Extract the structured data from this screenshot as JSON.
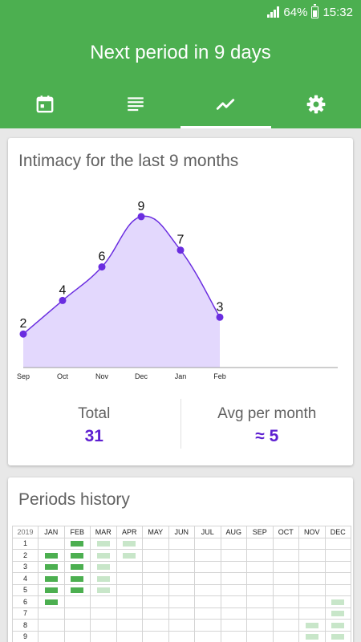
{
  "status": {
    "battery": "64%",
    "time": "15:32"
  },
  "header": {
    "title": "Next period in 9 days"
  },
  "tabs": [
    {
      "icon": "calendar-icon"
    },
    {
      "icon": "list-icon"
    },
    {
      "icon": "trend-chart-icon",
      "active": true
    },
    {
      "icon": "gear-icon"
    }
  ],
  "colors": {
    "primary": "#4caf50",
    "accent": "#5e1fd1",
    "area": "#e3d8fd",
    "line": "#6a2de0",
    "predicted": "#c8e6c9"
  },
  "intimacy": {
    "title": "Intimacy for the last 9 months",
    "total_label": "Total",
    "total_value": "31",
    "avg_label": "Avg per month",
    "avg_value": "≈ 5"
  },
  "chart_data": {
    "type": "area",
    "categories": [
      "Sep",
      "Oct",
      "Nov",
      "Dec",
      "Jan",
      "Feb"
    ],
    "values": [
      2,
      4,
      6,
      9,
      7,
      3
    ],
    "ylim": [
      0,
      10
    ],
    "grid": false,
    "legend": "none"
  },
  "history": {
    "title": "Periods history",
    "year": "2019",
    "months": [
      "JAN",
      "FEB",
      "MAR",
      "APR",
      "MAY",
      "JUN",
      "JUL",
      "AUG",
      "SEP",
      "OCT",
      "NOV",
      "DEC"
    ],
    "days": [
      "1",
      "2",
      "3",
      "4",
      "5",
      "6",
      "7",
      "8",
      "9"
    ],
    "marks": [
      {
        "day": 1,
        "month": 1,
        "kind": "past"
      },
      {
        "day": 1,
        "month": 2,
        "kind": "pred"
      },
      {
        "day": 1,
        "month": 3,
        "kind": "pred"
      },
      {
        "day": 2,
        "month": 0,
        "kind": "past"
      },
      {
        "day": 2,
        "month": 1,
        "kind": "past"
      },
      {
        "day": 2,
        "month": 2,
        "kind": "pred"
      },
      {
        "day": 2,
        "month": 3,
        "kind": "pred"
      },
      {
        "day": 3,
        "month": 0,
        "kind": "past"
      },
      {
        "day": 3,
        "month": 1,
        "kind": "past"
      },
      {
        "day": 3,
        "month": 2,
        "kind": "pred"
      },
      {
        "day": 4,
        "month": 0,
        "kind": "past"
      },
      {
        "day": 4,
        "month": 1,
        "kind": "past"
      },
      {
        "day": 4,
        "month": 2,
        "kind": "pred"
      },
      {
        "day": 5,
        "month": 0,
        "kind": "past"
      },
      {
        "day": 5,
        "month": 1,
        "kind": "past"
      },
      {
        "day": 5,
        "month": 2,
        "kind": "pred"
      },
      {
        "day": 6,
        "month": 0,
        "kind": "past"
      },
      {
        "day": 6,
        "month": 11,
        "kind": "pred"
      },
      {
        "day": 7,
        "month": 11,
        "kind": "pred"
      },
      {
        "day": 8,
        "month": 10,
        "kind": "pred"
      },
      {
        "day": 8,
        "month": 11,
        "kind": "pred"
      },
      {
        "day": 9,
        "month": 10,
        "kind": "pred"
      },
      {
        "day": 9,
        "month": 11,
        "kind": "pred"
      }
    ]
  }
}
